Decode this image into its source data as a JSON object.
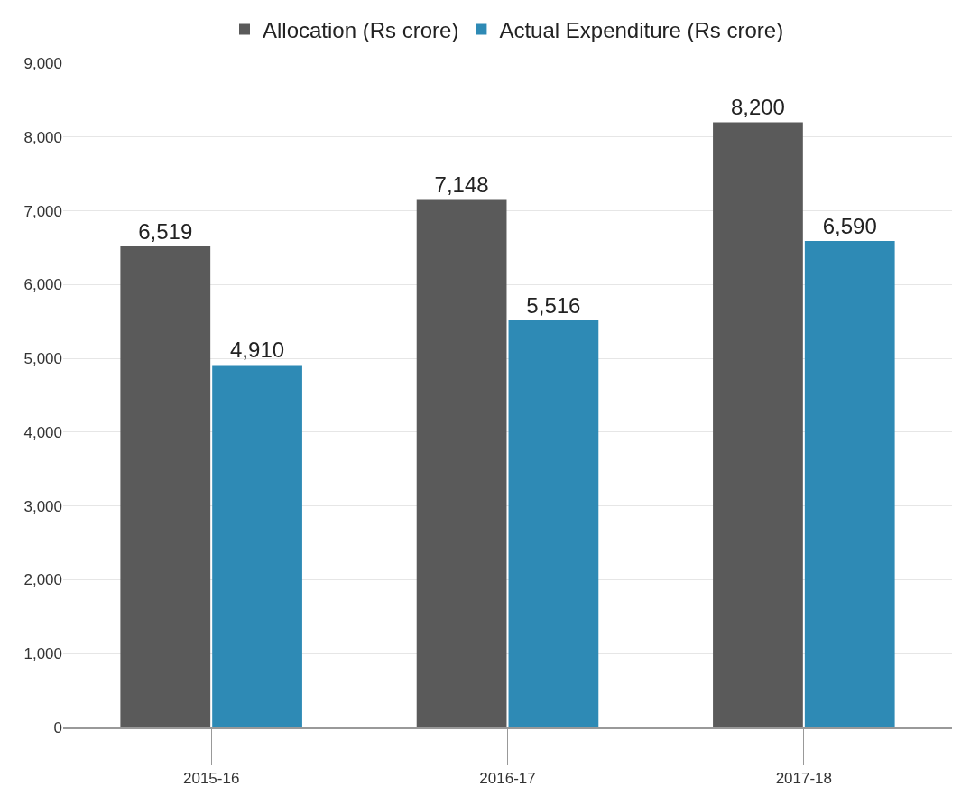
{
  "chart_data": {
    "type": "bar",
    "categories": [
      "2015-16",
      "2016-17",
      "2017-18"
    ],
    "series": [
      {
        "name": "Allocation (Rs crore)",
        "color": "#5a5a5a",
        "values": [
          6519,
          7148,
          8200
        ],
        "value_labels": [
          "6,519",
          "7,148",
          "8,200"
        ]
      },
      {
        "name": "Actual Expenditure (Rs crore)",
        "color": "#2e8ab5",
        "values": [
          4910,
          5516,
          6590
        ],
        "value_labels": [
          "4,910",
          "5,516",
          "6,590"
        ]
      }
    ],
    "ylim": [
      0,
      9000
    ],
    "yticks": [
      {
        "value": 0,
        "label": "0"
      },
      {
        "value": 1000,
        "label": "1,000"
      },
      {
        "value": 2000,
        "label": "2,000"
      },
      {
        "value": 3000,
        "label": "3,000"
      },
      {
        "value": 4000,
        "label": "4,000"
      },
      {
        "value": 5000,
        "label": "5,000"
      },
      {
        "value": 6000,
        "label": "6,000"
      },
      {
        "value": 7000,
        "label": "7,000"
      },
      {
        "value": 8000,
        "label": "8,000"
      },
      {
        "value": 9000,
        "label": "9,000"
      }
    ],
    "grid": "y",
    "legend": "top"
  }
}
